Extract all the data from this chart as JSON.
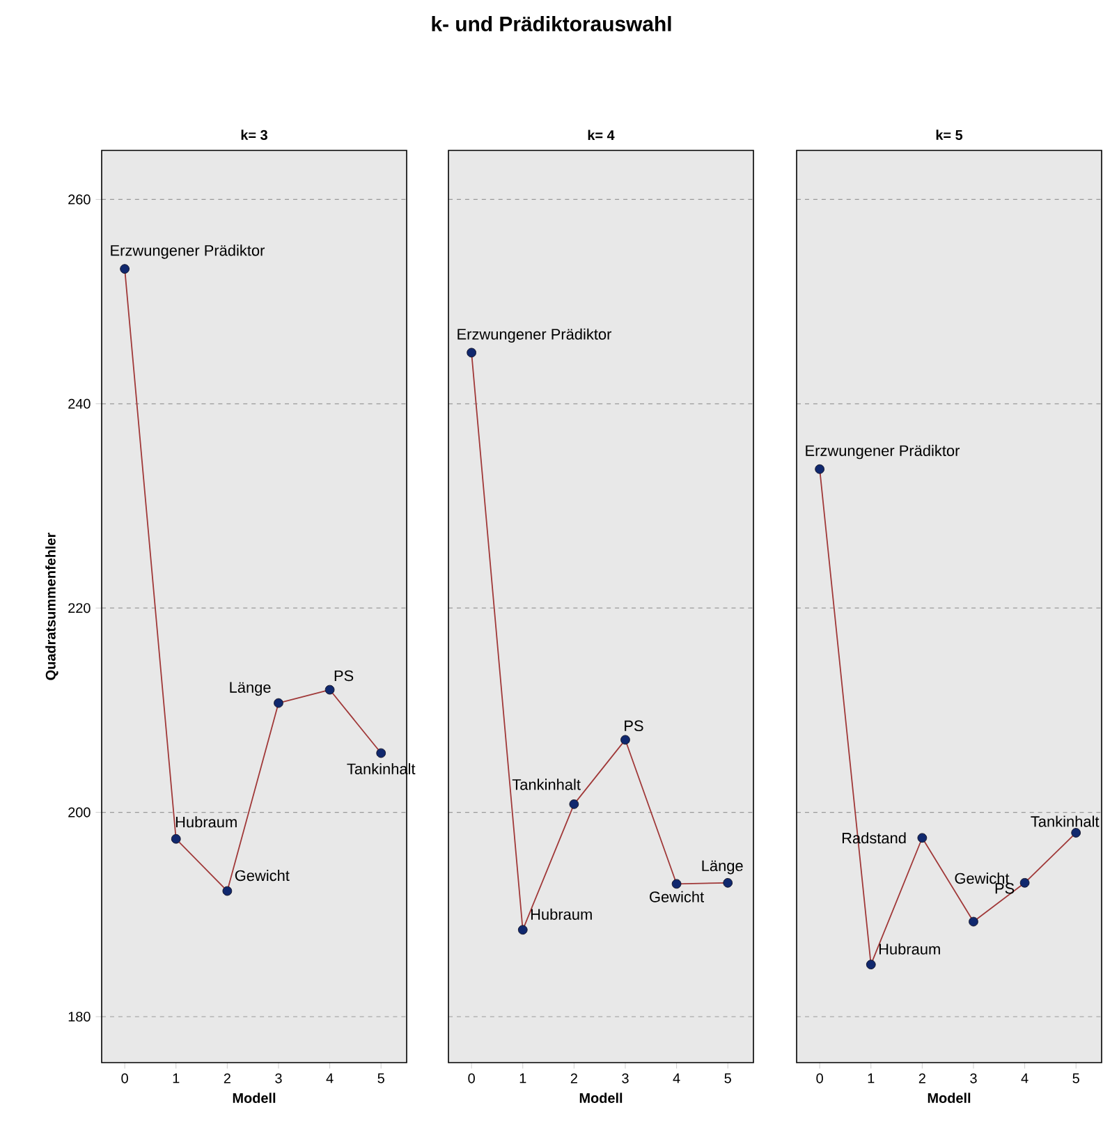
{
  "chart_data": [
    {
      "type": "line",
      "subtitle": "k= 3",
      "xlabel": "Modell",
      "ylabel": "Quadratsummenfehler",
      "x": [
        0,
        1,
        2,
        3,
        4,
        5
      ],
      "values": [
        253.2,
        197.4,
        192.3,
        210.7,
        212.0,
        205.8
      ],
      "color": "#a03838",
      "xlim": [
        -0.45,
        5.5
      ],
      "ylim": [
        175.5,
        264.8
      ],
      "xticks": [
        0,
        1,
        2,
        3,
        4,
        5
      ],
      "yticks": [
        180,
        200,
        220,
        240,
        260
      ],
      "grid": "y",
      "marker": "circle",
      "line_style": "solid",
      "annotations": [
        {
          "text": "Erzwungener Prädiktor",
          "x": 0,
          "y": 253.2
        },
        {
          "text": "Hubraum",
          "x": 1,
          "y": 197.4
        },
        {
          "text": "Gewicht",
          "x": 2,
          "y": 192.3
        },
        {
          "text": "Länge",
          "x": 3,
          "y": 210.7
        },
        {
          "text": "PS",
          "x": 4,
          "y": 212.0
        },
        {
          "text": "Tankinhalt",
          "x": 5,
          "y": 205.8
        }
      ]
    },
    {
      "type": "line",
      "title": "k- und Prädiktorauswahl",
      "subtitle": "k= 4",
      "xlabel": "Modell",
      "x": [
        0,
        1,
        2,
        3,
        4,
        5
      ],
      "values": [
        245.0,
        188.5,
        200.8,
        207.1,
        193.0,
        193.1
      ],
      "color": "#a03838",
      "xlim": [
        -0.45,
        5.5
      ],
      "ylim": [
        175.5,
        264.8
      ],
      "xticks": [
        0,
        1,
        2,
        3,
        4,
        5
      ],
      "yticks": [
        180,
        200,
        220,
        240,
        260
      ],
      "grid": "y",
      "marker": "circle",
      "line_style": "solid",
      "tick_labels": "x",
      "annotations": [
        {
          "text": "Erzwungener Prädiktor",
          "x": 0,
          "y": 245.0
        },
        {
          "text": "Hubraum",
          "x": 1,
          "y": 188.5
        },
        {
          "text": "Tankinhalt",
          "x": 2,
          "y": 200.8
        },
        {
          "text": "PS",
          "x": 3,
          "y": 207.1
        },
        {
          "text": "Gewicht",
          "x": 4,
          "y": 193.0
        },
        {
          "text": "Länge",
          "x": 5,
          "y": 193.1
        }
      ]
    },
    {
      "type": "line",
      "subtitle": "k= 5",
      "xlabel": "Modell",
      "x": [
        0,
        1,
        2,
        3,
        4,
        5
      ],
      "values": [
        233.6,
        185.1,
        197.5,
        189.3,
        193.1,
        198.0
      ],
      "color": "#a03838",
      "xlim": [
        -0.45,
        5.5
      ],
      "ylim": [
        175.5,
        264.8
      ],
      "xticks": [
        0,
        1,
        2,
        3,
        4,
        5
      ],
      "yticks": [
        180,
        200,
        220,
        240,
        260
      ],
      "grid": "y",
      "marker": "circle",
      "line_style": "solid",
      "tick_labels": "x",
      "annotations": [
        {
          "text": "Erzwungener Prädiktor",
          "x": 0,
          "y": 233.6
        },
        {
          "text": "Hubraum",
          "x": 1,
          "y": 185.1
        },
        {
          "text": "Radstand",
          "x": 2,
          "y": 197.5
        },
        {
          "text": "Gewicht",
          "x": 3,
          "y": 189.3
        },
        {
          "text": "PS",
          "x": 4,
          "y": 193.1
        },
        {
          "text": "Tankinhalt",
          "x": 5,
          "y": 198.0
        }
      ]
    }
  ]
}
